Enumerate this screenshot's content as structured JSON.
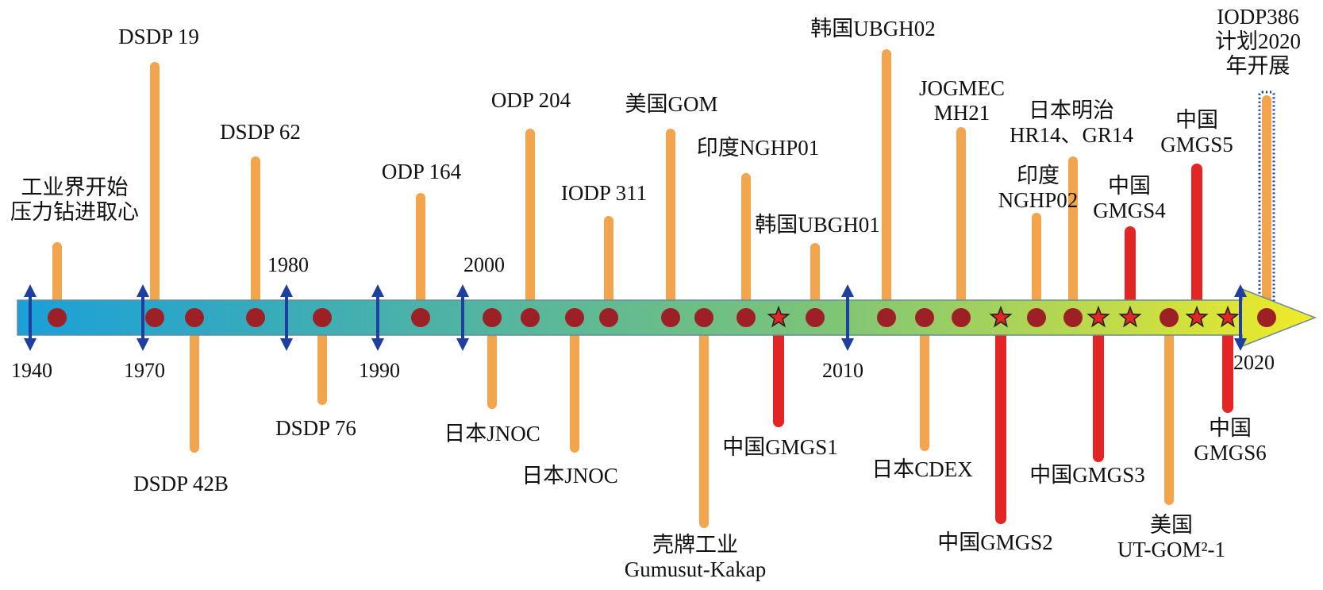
{
  "colors": {
    "arrow_start": "#1aa0d8",
    "arrow_mid": "#7cc478",
    "arrow_end": "#f0eb28",
    "arrow_edge": "#6a8a9a",
    "tick": "#1f3f9e",
    "stem_orange": "#f3a54d",
    "stem_red": "#e32525",
    "dot": "#9c2026",
    "star_fill": "#e32525",
    "star_stroke": "#222222",
    "highlight_border": "#1f3f9e"
  },
  "years": [
    {
      "text": "1940"
    },
    {
      "text": "1970"
    },
    {
      "text": "1980"
    },
    {
      "text": "1990"
    },
    {
      "text": "2000"
    },
    {
      "text": "2010"
    },
    {
      "text": "2020"
    }
  ],
  "events": [
    {
      "id": "industry",
      "lines": [
        "工业界开始",
        "压力钻进取心"
      ],
      "side": "up",
      "color": "orange",
      "marker": "dot"
    },
    {
      "id": "dsdp19",
      "lines": [
        "DSDP 19"
      ],
      "side": "up",
      "color": "orange",
      "marker": "dot"
    },
    {
      "id": "dsdp42b",
      "lines": [
        "DSDP 42B"
      ],
      "side": "down",
      "color": "orange",
      "marker": "dot"
    },
    {
      "id": "dsdp62",
      "lines": [
        "DSDP 62"
      ],
      "side": "up",
      "color": "orange",
      "marker": "dot"
    },
    {
      "id": "dsdp76",
      "lines": [
        "DSDP 76"
      ],
      "side": "down",
      "color": "orange",
      "marker": "dot"
    },
    {
      "id": "odp164",
      "lines": [
        "ODP 164"
      ],
      "side": "up",
      "color": "orange",
      "marker": "dot"
    },
    {
      "id": "jnoc1",
      "lines": [
        "日本JNOC"
      ],
      "side": "down",
      "color": "orange",
      "marker": "dot"
    },
    {
      "id": "odp204",
      "lines": [
        "ODP 204"
      ],
      "side": "up",
      "color": "orange",
      "marker": "dot"
    },
    {
      "id": "jnoc2",
      "lines": [
        "日本JNOC"
      ],
      "side": "down",
      "color": "orange",
      "marker": "dot"
    },
    {
      "id": "iodp311",
      "lines": [
        "IODP 311"
      ],
      "side": "up",
      "color": "orange",
      "marker": "dot"
    },
    {
      "id": "gom",
      "lines": [
        "美国GOM"
      ],
      "side": "up",
      "color": "orange",
      "marker": "dot"
    },
    {
      "id": "shell",
      "lines": [
        "壳牌工业",
        "Gumusut-Kakap"
      ],
      "side": "down",
      "color": "orange",
      "marker": "dot"
    },
    {
      "id": "nghp01",
      "lines": [
        "印度NGHP01"
      ],
      "side": "up",
      "color": "orange",
      "marker": "dot"
    },
    {
      "id": "gmgs1",
      "lines": [
        "中国GMGS1"
      ],
      "side": "down",
      "color": "red",
      "marker": "star"
    },
    {
      "id": "ubgh01",
      "lines": [
        "韩国UBGH01"
      ],
      "side": "up",
      "color": "orange",
      "marker": "dot"
    },
    {
      "id": "ubgh02",
      "lines": [
        "韩国UBGH02"
      ],
      "side": "up",
      "color": "orange",
      "marker": "dot"
    },
    {
      "id": "cdex",
      "lines": [
        "日本CDEX"
      ],
      "side": "down",
      "color": "orange",
      "marker": "dot"
    },
    {
      "id": "mh21",
      "lines": [
        "JOGMEC",
        "MH21"
      ],
      "side": "up",
      "color": "orange",
      "marker": "dot"
    },
    {
      "id": "gmgs2",
      "lines": [
        "中国GMGS2"
      ],
      "side": "down",
      "color": "red",
      "marker": "star"
    },
    {
      "id": "nghp02",
      "lines": [
        "印度",
        "NGHP02"
      ],
      "side": "up",
      "color": "orange",
      "marker": "dot"
    },
    {
      "id": "meiji",
      "lines": [
        "日本明治",
        "HR14、GR14"
      ],
      "side": "up",
      "color": "orange",
      "marker": "dot"
    },
    {
      "id": "gmgs3",
      "lines": [
        "中国GMGS3"
      ],
      "side": "down",
      "color": "red",
      "marker": "star"
    },
    {
      "id": "gmgs4",
      "lines": [
        "中国",
        "GMGS4"
      ],
      "side": "up",
      "color": "red",
      "marker": "star"
    },
    {
      "id": "utgom",
      "lines": [
        "美国",
        "UT-GOM²-1"
      ],
      "side": "down",
      "color": "orange",
      "marker": "dot"
    },
    {
      "id": "gmgs5",
      "lines": [
        "中国",
        "GMGS5"
      ],
      "side": "up",
      "color": "red",
      "marker": "star"
    },
    {
      "id": "gmgs6",
      "lines": [
        "中国",
        "GMGS6"
      ],
      "side": "down",
      "color": "red",
      "marker": "star"
    },
    {
      "id": "iodp386",
      "lines": [
        "IODP386",
        "计划2020",
        "年开展"
      ],
      "side": "up",
      "color": "orange",
      "marker": "dot",
      "highlight": true
    }
  ]
}
